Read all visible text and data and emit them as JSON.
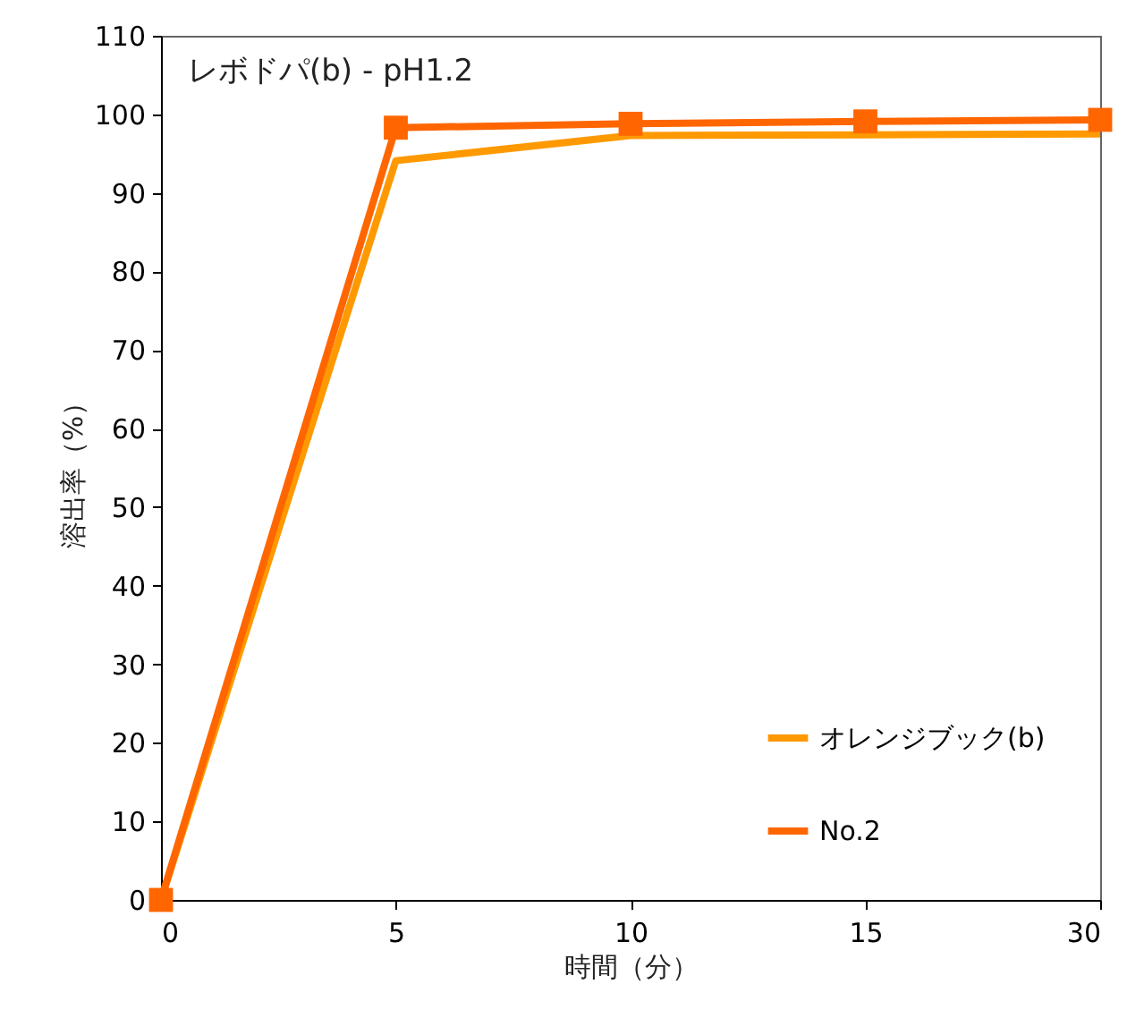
{
  "chart_data": {
    "type": "line",
    "title": "レボドパ(b) - pH1.2",
    "xlabel": "時間（分）",
    "ylabel": "溶出率（%）",
    "categories": [
      "0",
      "5",
      "10",
      "15",
      "30"
    ],
    "series": [
      {
        "name": "オレンジブック(b)",
        "color": "#ff9900",
        "values": [
          0,
          94.1,
          97.3,
          97.4,
          97.5
        ],
        "marker": "none"
      },
      {
        "name": "No.2",
        "color": "#ff6600",
        "values": [
          0,
          98.3,
          98.8,
          99.1,
          99.3
        ],
        "marker": "square"
      }
    ],
    "ylim": [
      0,
      110
    ],
    "yticks": [
      0,
      10,
      20,
      30,
      40,
      50,
      60,
      70,
      80,
      90,
      100,
      110
    ],
    "grid": false,
    "legend": "bottom right",
    "line_style": "solid"
  }
}
